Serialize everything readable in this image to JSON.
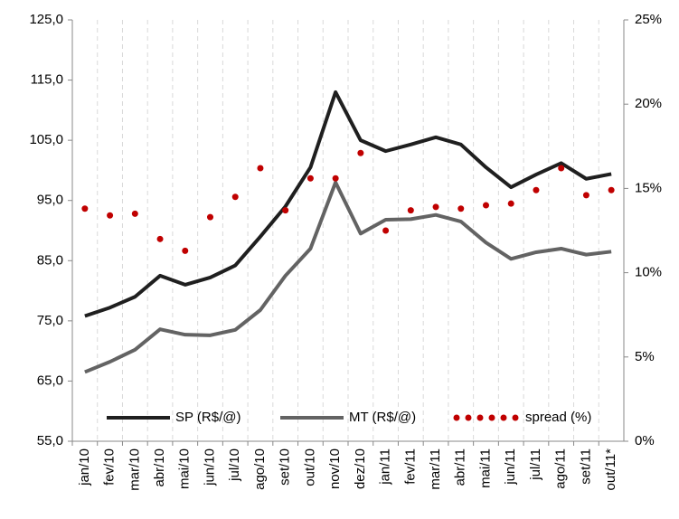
{
  "chart_data": {
    "type": "line",
    "categories": [
      "jan/10",
      "fev/10",
      "mar/10",
      "abr/10",
      "mai/10",
      "jun/10",
      "jul/10",
      "ago/10",
      "set/10",
      "out/10",
      "nov/10",
      "dez/10",
      "jan/11",
      "fev/11",
      "mar/11",
      "abr/11",
      "mai/11",
      "jun/11",
      "jul/11",
      "ago/11",
      "set/11",
      "out/11*"
    ],
    "series": [
      {
        "name": "SP (R$/@)",
        "color": "#1f1f1f",
        "style": "line",
        "values": [
          75.8,
          77.2,
          79.0,
          82.5,
          81.0,
          82.2,
          84.2,
          89.0,
          94.0,
          100.5,
          113.0,
          105.0,
          103.2,
          104.3,
          105.5,
          104.3,
          100.5,
          97.2,
          99.3,
          101.2,
          98.6,
          99.4
        ]
      },
      {
        "name": "MT (R$/@)",
        "color": "#636363",
        "style": "line",
        "values": [
          66.5,
          68.2,
          70.2,
          73.6,
          72.7,
          72.6,
          73.5,
          76.8,
          82.5,
          87.0,
          98.0,
          89.5,
          91.8,
          91.9,
          92.6,
          91.5,
          88.0,
          85.3,
          86.4,
          87.0,
          86.0,
          86.5
        ]
      },
      {
        "name": "spread (%)",
        "color": "#c00000",
        "style": "dots",
        "axis": "y2",
        "values": [
          13.8,
          13.4,
          13.5,
          12.0,
          11.3,
          13.3,
          14.5,
          16.2,
          13.7,
          15.6,
          15.6,
          17.1,
          12.5,
          13.7,
          13.9,
          13.8,
          14.0,
          14.1,
          14.9,
          16.2,
          14.6,
          14.9
        ]
      }
    ],
    "ylim": [
      55,
      125
    ],
    "yticks": [
      {
        "value": 55,
        "label": "55,0"
      },
      {
        "value": 65,
        "label": "65,0"
      },
      {
        "value": 75,
        "label": "75,0"
      },
      {
        "value": 85,
        "label": "85,0"
      },
      {
        "value": 95,
        "label": "95,0"
      },
      {
        "value": 105,
        "label": "105,0"
      },
      {
        "value": 115,
        "label": "115,0"
      },
      {
        "value": 125,
        "label": "125,0"
      }
    ],
    "y2lim": [
      0,
      25
    ],
    "y2ticks": [
      {
        "value": 0,
        "label": "0%"
      },
      {
        "value": 5,
        "label": "5%"
      },
      {
        "value": 10,
        "label": "10%"
      },
      {
        "value": 15,
        "label": "15%"
      },
      {
        "value": 20,
        "label": "20%"
      },
      {
        "value": 25,
        "label": "25%"
      }
    ],
    "grid": true
  }
}
